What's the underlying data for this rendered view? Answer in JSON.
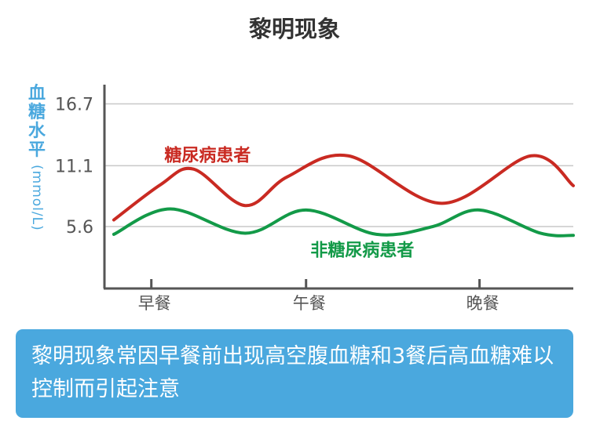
{
  "chart_data": {
    "type": "line",
    "title": "黎明现象",
    "ylabel_text": "血糖水平",
    "ylabel_unit": "(mmol/L)",
    "ylim": [
      0,
      19
    ],
    "y_ticks": [
      5.6,
      11.1,
      16.7
    ],
    "y_tick_labels": [
      "5.6",
      "11.1",
      "16.7"
    ],
    "categories": [
      "早餐",
      "午餐",
      "晚餐"
    ],
    "category_x": [
      0.1,
      0.43,
      0.8
    ],
    "grid": true,
    "series": [
      {
        "name": "糖尿病患者",
        "color": "#c92a22",
        "x": [
          0.02,
          0.12,
          0.19,
          0.3,
          0.39,
          0.52,
          0.72,
          0.91,
          1.0
        ],
        "values": [
          6.2,
          9.4,
          10.8,
          7.5,
          10.1,
          12.0,
          7.7,
          12.0,
          9.3
        ]
      },
      {
        "name": "非糖尿病患者",
        "color": "#139a48",
        "x": [
          0.02,
          0.14,
          0.3,
          0.43,
          0.58,
          0.7,
          0.8,
          0.93,
          1.0
        ],
        "values": [
          4.9,
          7.2,
          5.0,
          7.1,
          4.9,
          5.6,
          7.1,
          5.0,
          4.8
        ]
      }
    ]
  },
  "info_text": "黎明现象常因早餐前出现高空腹血糖和3餐后高血糖难以控制而引起注意"
}
